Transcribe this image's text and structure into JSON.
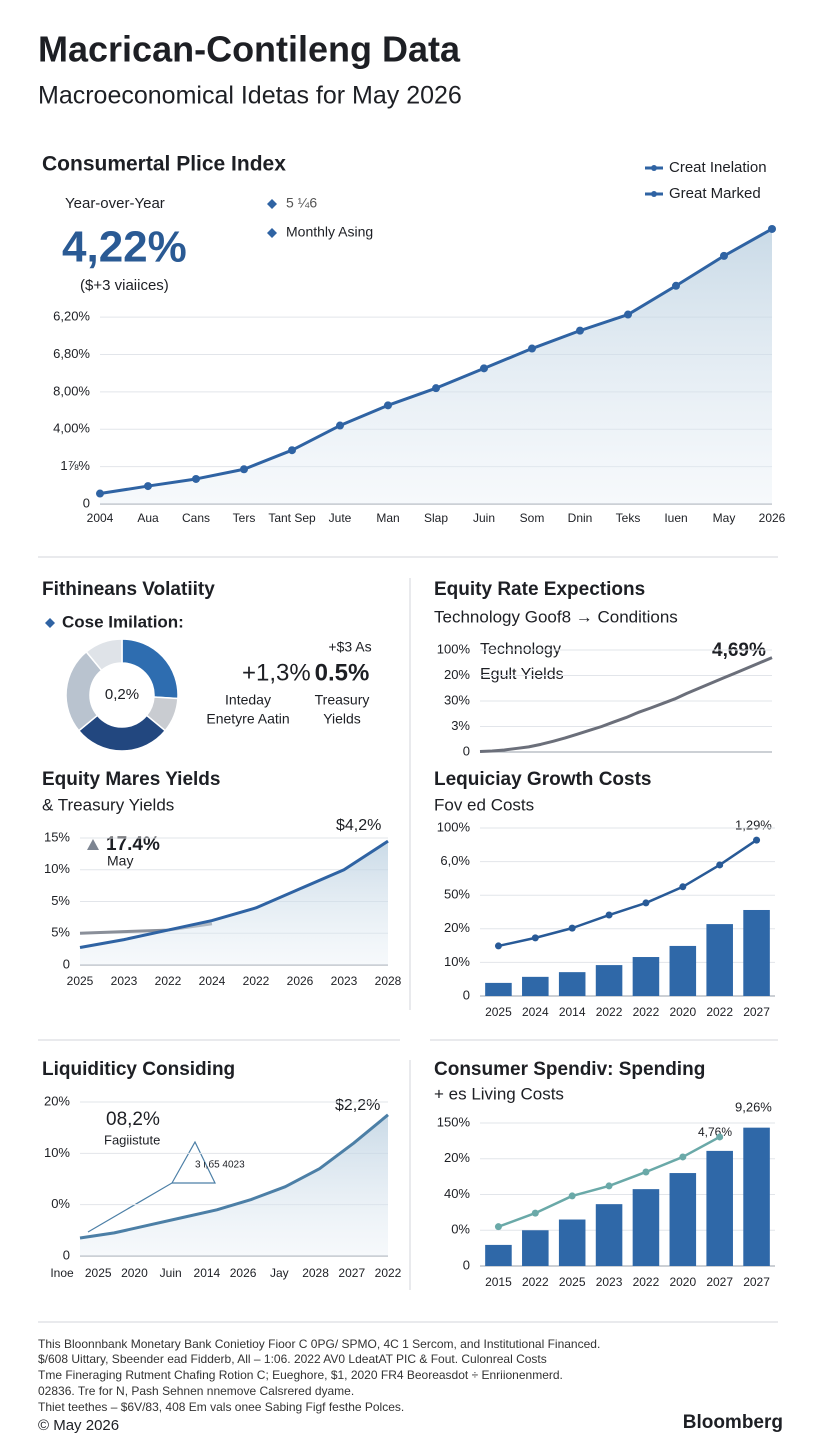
{
  "header": {
    "title": "Macrican-Contileng Data",
    "subtitle": "Macroeconomical Idetas for May 2026"
  },
  "chart_data": [
    {
      "type": "line",
      "title": "Consumertal Plice Index",
      "annotations": [
        "Year-over-Year",
        "4,22%",
        "($+3 viaiices)",
        "5 ¼6",
        "Monthly Asing"
      ],
      "legend": [
        "Creat Inelation",
        "Great Marked"
      ],
      "categories": [
        "2004",
        "Aua",
        "Cans",
        "Ters",
        "Tant Sep",
        "Jute",
        "Man",
        "Slap",
        "Juin",
        "Som",
        "Dnin",
        "Teks",
        "Iuen",
        "May",
        "2026"
      ],
      "series": [
        {
          "color": "#2f63a3",
          "values": [
            0.28,
            0.48,
            0.67,
            0.93,
            1.44,
            2.1,
            2.64,
            3.1,
            3.63,
            4.16,
            4.64,
            5.07,
            5.84,
            6.64,
            7.36
          ]
        }
      ],
      "ylim": [
        0,
        7.6
      ],
      "yticks": [
        0,
        {
          "value": 1,
          "label": "1⅞%"
        },
        {
          "value": 2,
          "label": "4,00%"
        },
        {
          "value": 3,
          "label": "8,00%"
        },
        {
          "value": 4,
          "label": "6,80%"
        },
        {
          "value": 5,
          "label": "6,20%"
        }
      ],
      "grid": true,
      "markers": true,
      "area": true
    },
    {
      "type": "donut",
      "title": "Fithineans Volatiity",
      "annotations": [
        "Cose Imilation:",
        "0,2%",
        "+1,3%",
        "Inteday",
        "Enetyre Aatin",
        "+$3 As",
        "0.5%",
        "Treasury",
        "Yields"
      ],
      "categories": [
        null,
        null,
        null,
        null,
        null
      ],
      "values": [
        26,
        10,
        28,
        25,
        11
      ],
      "colors": [
        "#2e6db0",
        "#c9ccd1",
        "#22477f",
        "#b9c3cf",
        "#dfe3e8"
      ]
    },
    {
      "type": "line",
      "title": "Equity Rate Expections",
      "subtitle": "Technology Goof8 → Conditions",
      "annotations": [
        "Technology",
        "Egult Yields",
        "4,69%"
      ],
      "series": [
        {
          "color": "#6b6f7a",
          "values": [
            0.02,
            0.04,
            0.08,
            0.14,
            0.2,
            0.3,
            0.42,
            0.55,
            0.7,
            0.85,
            1.0,
            1.18,
            1.35,
            1.55,
            1.72,
            1.9,
            2.08,
            2.3,
            2.5,
            2.7,
            2.9,
            3.1,
            3.3,
            3.5,
            3.7
          ]
        }
      ],
      "ylim": [
        0,
        4
      ],
      "yticks": [
        0,
        {
          "value": 1,
          "label": "3%"
        },
        {
          "value": 2,
          "label": "30%"
        },
        {
          "value": 3,
          "label": "20%"
        },
        {
          "value": 4,
          "label": "100%"
        }
      ],
      "grid": true
    },
    {
      "type": "line",
      "title": "Equity Mares Yields",
      "subtitle": "& Treasury Yields",
      "annotations": [
        "17.4%",
        "May",
        "$4,2%"
      ],
      "categories": [
        "2025",
        "2023",
        "2022",
        "2024",
        "2022",
        "2026",
        "2023",
        "2028"
      ],
      "series": [
        {
          "color": "#8a8f99",
          "values": [
            1.0,
            1.05,
            1.1,
            1.3,
            null,
            null,
            null,
            null
          ]
        },
        {
          "color": "#2f63a3",
          "values": [
            0.55,
            0.8,
            1.1,
            1.4,
            1.8,
            2.4,
            3.0,
            3.9
          ]
        }
      ],
      "ylim": [
        0,
        4
      ],
      "yticks": [
        0,
        {
          "value": 1,
          "label": "5%"
        },
        {
          "value": 2,
          "label": "5%"
        },
        {
          "value": 3,
          "label": "10%"
        },
        {
          "value": 4,
          "label": "15%"
        }
      ],
      "grid": true,
      "area": true
    },
    {
      "type": "bar",
      "title": "Lequiciay Growth Costs",
      "subtitle": "Fov ed Costs",
      "annotations": [
        "1,29%"
      ],
      "categories": [
        "2025",
        "2024",
        "2014",
        "2022",
        "2022",
        "2020",
        "2022",
        "2027"
      ],
      "series": [
        {
          "type": "bar",
          "color": "#2f68a8",
          "values": [
            0.39,
            0.57,
            0.71,
            0.92,
            1.16,
            1.49,
            2.14,
            2.56
          ]
        },
        {
          "type": "line",
          "color": "#285a97",
          "values": [
            1.49,
            1.73,
            2.02,
            2.41,
            2.77,
            3.25,
            3.9,
            4.64
          ]
        }
      ],
      "ylim": [
        0,
        5
      ],
      "yticks": [
        0,
        {
          "value": 1,
          "label": "10%"
        },
        {
          "value": 2,
          "label": "20%"
        },
        {
          "value": 3,
          "label": "50%"
        },
        {
          "value": 4,
          "label": "6,0%"
        },
        {
          "value": 5,
          "label": "100%"
        }
      ],
      "grid": true
    },
    {
      "type": "line",
      "title": "Liquiditicy Considing",
      "annotations": [
        "08,2%",
        "Fagiistute",
        "$2,2%",
        "3 ι,б5 4023"
      ],
      "categories": [
        "Inoe",
        "2025",
        "2020",
        "Juin",
        "2014",
        "2026",
        "Jay",
        "2028",
        "2027",
        "2022"
      ],
      "series": [
        {
          "color": "#4c7fa6",
          "values": [
            0.35,
            0.45,
            0.6,
            0.75,
            0.9,
            1.1,
            1.35,
            1.7,
            2.2,
            2.75
          ]
        }
      ],
      "ylim": [
        0,
        3
      ],
      "yticks": [
        0,
        {
          "value": 1,
          "label": "0%"
        },
        {
          "value": 2,
          "label": "10%"
        },
        {
          "value": 3,
          "label": "20%"
        }
      ],
      "grid": true,
      "area": true
    },
    {
      "type": "bar",
      "title": "Consumer Spendiv: Spending",
      "subtitle": "+ es Living Costs",
      "annotations": [
        "9,26%",
        "4,76%"
      ],
      "categories": [
        "2015",
        "2022",
        "2025",
        "2023",
        "2022",
        "2020",
        "2027",
        "2027"
      ],
      "series": [
        {
          "type": "bar",
          "color": "#2f68a8",
          "values": [
            0.59,
            1.0,
            1.3,
            1.73,
            2.15,
            2.6,
            3.22,
            3.87
          ]
        },
        {
          "type": "line",
          "color": "#6aa9a8",
          "values": [
            1.1,
            1.48,
            1.96,
            2.24,
            2.63,
            3.05,
            3.61,
            null
          ]
        }
      ],
      "ylim": [
        0,
        4
      ],
      "yticks": [
        0,
        {
          "value": 1,
          "label": "0%"
        },
        {
          "value": 2,
          "label": "40%"
        },
        {
          "value": 3,
          "label": "20%"
        },
        {
          "value": 4,
          "label": "150%"
        }
      ],
      "grid": true
    }
  ],
  "footer": {
    "lines": [
      "This Bloonnbank Monetary Bank Conietioy Fioor C 0PG/ SPMO, 4C 1 Sercom, and Institutional Financed.",
      "$/608 Uittary, Sbeender ead Fidderb, All – 1:06. 2022 AV0 LdeatAT PIC & Fout. Culonreal Costs",
      "Tme Fineraging Rutment Chafing Rotion C; Eueghore, $1, 2020 FR4 Beoreasdot ÷ Enriionenmerd.",
      "02836. Tre for N, Pash Sehnen nnemove Calsrered dyame.",
      "Thiet teethes – $6V/83, 408 Em vals onee Sabing Figf festhe Polces."
    ],
    "date": "© May 2026",
    "brand": "Bloomberg"
  }
}
